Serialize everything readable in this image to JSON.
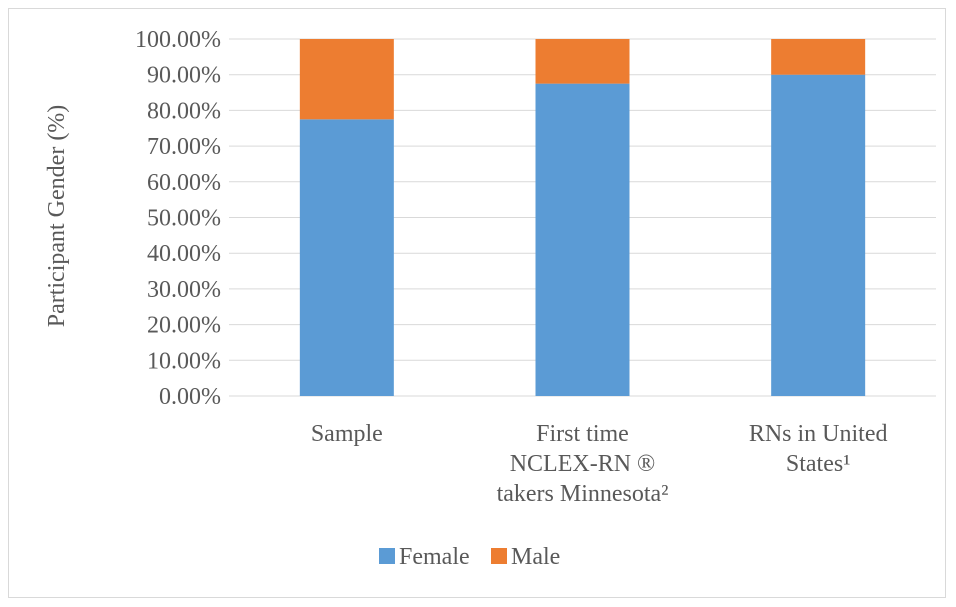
{
  "chart_data": {
    "type": "bar",
    "stacked": true,
    "categories": [
      [
        "Sample"
      ],
      [
        "First time",
        "NCLEX-RN ®",
        "takers Minnesota²"
      ],
      [
        "RNs in United",
        "States¹"
      ]
    ],
    "series": [
      {
        "name": "Female",
        "values": [
          77.5,
          87.5,
          90.0
        ],
        "color": "#5b9bd5"
      },
      {
        "name": "Male",
        "values": [
          22.5,
          12.5,
          10.0
        ],
        "color": "#ed7d31"
      }
    ],
    "title": "",
    "xlabel": "",
    "ylabel": "Participant Gender (%)",
    "ylim": [
      0,
      100
    ],
    "yticks": [
      "0.00%",
      "10.00%",
      "20.00%",
      "30.00%",
      "40.00%",
      "50.00%",
      "60.00%",
      "70.00%",
      "80.00%",
      "90.00%",
      "100.00%"
    ],
    "grid": true,
    "legend_position": "bottom",
    "gridline_color": "#d9d9d9"
  }
}
